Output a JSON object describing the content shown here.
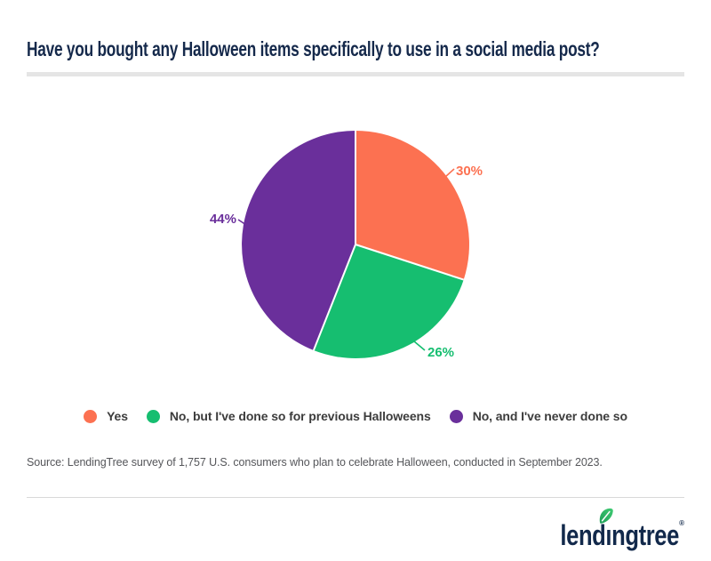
{
  "header": {
    "title": "Have you bought any Halloween items specifically to use in a social media post?"
  },
  "chart_data": {
    "type": "pie",
    "title": "Have you bought any Halloween items specifically to use in a social media post?",
    "slices": [
      {
        "label": "Yes",
        "value": 30,
        "color": "#FC7151"
      },
      {
        "label": "No, but I've done so for previous Halloweens",
        "value": 26,
        "color": "#16BE70"
      },
      {
        "label": "No, and I've never done so",
        "value": 44,
        "color": "#6A2F9B"
      }
    ],
    "data_labels": [
      "30%",
      "26%",
      "44%"
    ],
    "start_angle_deg": 0,
    "direction": "clockwise",
    "legend_position": "bottom",
    "values_total": 100
  },
  "source": {
    "text": "Source: LendingTree survey of 1,757 U.S. consumers who plan to celebrate Halloween, conducted in September 2023."
  },
  "footer": {
    "logo_text": "lendingtree",
    "registered": "®"
  },
  "colors": {
    "title_navy": "#15294B",
    "logo_navy": "#12294B",
    "rule_gray": "#E5E5E5",
    "footer_rule_gray": "#D9D9D9",
    "legend_text": "#3C3C3C",
    "source_text": "#55565A",
    "leaf_green_dark": "#1E9E57",
    "leaf_green_light": "#3FCB73"
  }
}
